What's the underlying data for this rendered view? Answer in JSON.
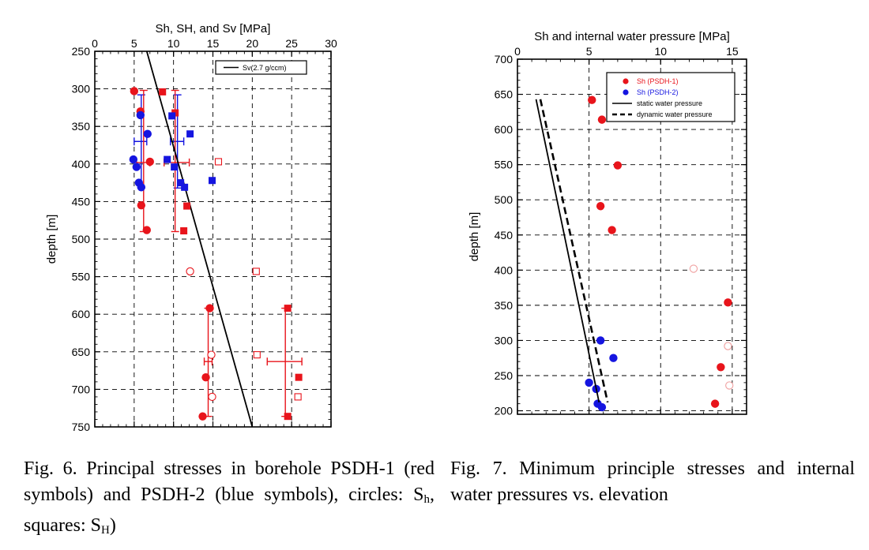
{
  "fig6": {
    "chart_data": {
      "type": "scatter",
      "title": "Sh, SH, and Sv [MPa]",
      "ylabel": "depth [m]",
      "xlim": [
        0,
        30
      ],
      "ylim": [
        250,
        750
      ],
      "y_inverted": true,
      "x_axis_position": "top",
      "grid": "dashed",
      "x_ticks": [
        0,
        5,
        10,
        15,
        20,
        25,
        30
      ],
      "y_ticks": [
        250,
        300,
        350,
        400,
        450,
        500,
        550,
        600,
        650,
        700,
        750
      ],
      "legend": {
        "position": "top-right",
        "entries": [
          "Sv(2.7 g/ccm)"
        ]
      },
      "series": [
        {
          "name": "Sv(2.7 g/ccm)",
          "kind": "line",
          "color": "#000000",
          "points": [
            [
              6.6,
              250
            ],
            [
              20,
              750
            ]
          ]
        },
        {
          "kind": "filled-circle",
          "color": "#e8141b",
          "points": [
            [
              5.0,
              303
            ],
            [
              5.8,
              330
            ],
            [
              7.0,
              397
            ],
            [
              5.9,
              455
            ],
            [
              6.6,
              488
            ],
            [
              14.6,
              592
            ],
            [
              14.1,
              684
            ],
            [
              13.7,
              736
            ]
          ]
        },
        {
          "kind": "open-circle",
          "color": "#e8141b",
          "points": [
            [
              12.1,
              543
            ],
            [
              14.8,
              654
            ],
            [
              14.9,
              710
            ]
          ]
        },
        {
          "kind": "filled-square",
          "color": "#e8141b",
          "points": [
            [
              8.6,
              304
            ],
            [
              10.2,
              332
            ],
            [
              11.7,
              456
            ],
            [
              11.3,
              489
            ],
            [
              24.5,
              592
            ],
            [
              25.9,
              684
            ],
            [
              24.5,
              736
            ]
          ]
        },
        {
          "kind": "open-square",
          "color": "#e8141b",
          "points": [
            [
              15.7,
              397
            ],
            [
              20.5,
              543
            ],
            [
              20.6,
              654
            ],
            [
              25.8,
              710
            ]
          ]
        },
        {
          "kind": "filled-circle",
          "color": "#1515e0",
          "points": [
            [
              5.8,
              335
            ],
            [
              6.7,
              360
            ],
            [
              4.9,
              394
            ],
            [
              5.3,
              404
            ],
            [
              5.6,
              425
            ],
            [
              5.9,
              431
            ]
          ]
        },
        {
          "kind": "filled-square",
          "color": "#1515e0",
          "points": [
            [
              9.8,
              336
            ],
            [
              12.1,
              360
            ],
            [
              9.2,
              394
            ],
            [
              10.1,
              404
            ],
            [
              10.9,
              425
            ],
            [
              11.4,
              431
            ],
            [
              14.9,
              422
            ]
          ]
        }
      ],
      "error_bars": [
        {
          "color": "#1515e0",
          "x": 5.9,
          "y": 370,
          "xerr": [
            5.0,
            6.6
          ],
          "yerr": [
            308,
            432
          ]
        },
        {
          "color": "#1515e0",
          "x": 10.5,
          "y": 370,
          "xerr": [
            9.6,
            11.3
          ],
          "yerr": [
            308,
            432
          ]
        },
        {
          "color": "#e8141b",
          "x": 6.2,
          "y": 398,
          "xerr": [
            5.3,
            7.0
          ],
          "yerr": [
            302,
            490
          ]
        },
        {
          "color": "#e8141b",
          "x": 10.2,
          "y": 398,
          "xerr": [
            8.8,
            12.0
          ],
          "yerr": [
            302,
            490
          ]
        },
        {
          "color": "#e8141b",
          "x": 14.4,
          "y": 663,
          "xerr": [
            13.9,
            14.9
          ],
          "yerr": [
            592,
            736
          ]
        },
        {
          "color": "#e8141b",
          "x": 24.2,
          "y": 663,
          "xerr": [
            21.9,
            26.3
          ],
          "yerr": [
            592,
            736
          ]
        }
      ]
    }
  },
  "fig7": {
    "chart_data": {
      "type": "scatter",
      "title": "Sh and internal water pressure [MPa]",
      "ylabel": "depth [m]",
      "xlim": [
        0,
        16
      ],
      "ylim": [
        700,
        195
      ],
      "x_axis_position": "top",
      "grid": "dashed",
      "x_ticks": [
        0,
        5,
        10,
        15
      ],
      "y_ticks": [
        700,
        650,
        600,
        550,
        500,
        450,
        400,
        350,
        300,
        250,
        200
      ],
      "legend": {
        "position": "top-right",
        "entries": [
          "Sh (PSDH-1)",
          "Sh (PSDH-2)",
          "static water pressure",
          "dynamic water pressure"
        ]
      },
      "series": [
        {
          "name": "Sh (PSDH-1)",
          "kind": "filled-circle",
          "color": "#e8141b",
          "points": [
            [
              5.2,
              642
            ],
            [
              5.9,
              614
            ],
            [
              7.0,
              549
            ],
            [
              5.8,
              491
            ],
            [
              6.6,
              457
            ],
            [
              14.7,
              354
            ],
            [
              14.2,
              262
            ],
            [
              13.8,
              210
            ]
          ]
        },
        {
          "kind": "open-circle",
          "color": "#f0a0a0",
          "points": [
            [
              12.3,
              402
            ],
            [
              14.7,
              292
            ],
            [
              14.8,
              236
            ]
          ]
        },
        {
          "name": "Sh (PSDH-2)",
          "kind": "filled-circle",
          "color": "#1515e0",
          "points": [
            [
              5.8,
              300
            ],
            [
              6.7,
              275
            ],
            [
              5.0,
              240
            ],
            [
              5.5,
              231
            ],
            [
              5.6,
              210
            ],
            [
              5.9,
              205
            ]
          ]
        },
        {
          "name": "static water pressure",
          "kind": "line",
          "dash": "solid",
          "color": "#000000",
          "points": [
            [
              1.3,
              643
            ],
            [
              5.7,
              212
            ]
          ]
        },
        {
          "name": "dynamic water pressure",
          "kind": "line",
          "dash": "dashed",
          "color": "#000000",
          "points": [
            [
              1.6,
              643
            ],
            [
              6.3,
              212
            ]
          ]
        }
      ]
    }
  },
  "captions": {
    "fig6": {
      "text": "Fig. 6. Principal stresses in borehole PSDH-1 (red symbols) and PSDH-2 (blue symbols), circles: S",
      "sub_h": "h",
      "mid": ", squares: S",
      "sub_H": "H",
      "end": ")"
    },
    "fig7": "Fig. 7. Minimum principle stresses and internal water pressures vs. elevation"
  }
}
